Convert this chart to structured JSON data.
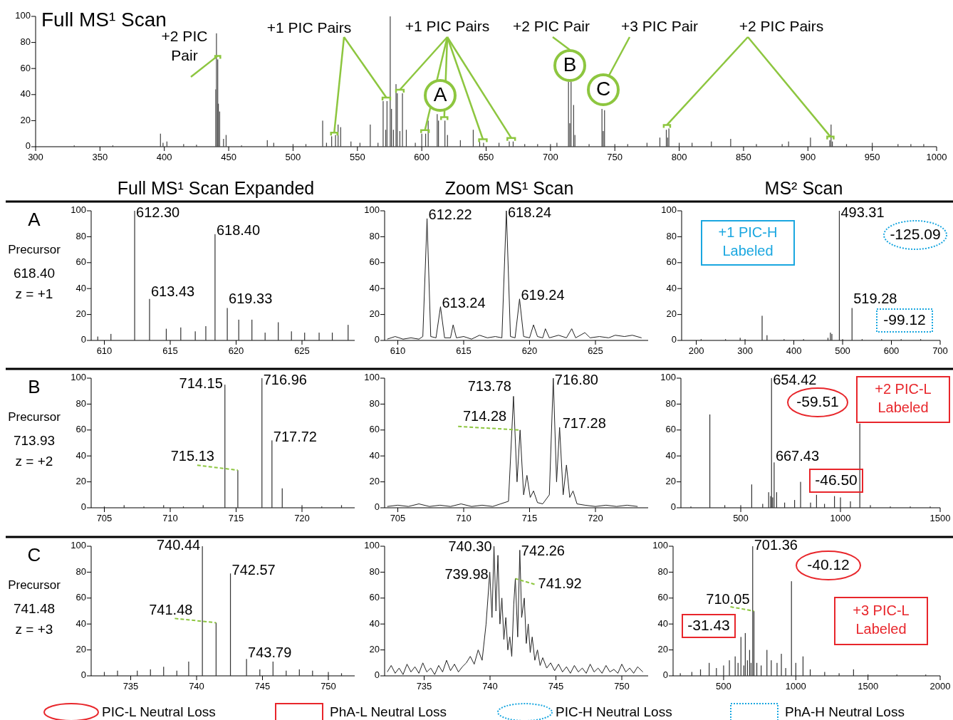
{
  "chart_data": [
    {
      "type": "bar",
      "title": "Full MS¹ Scan",
      "color": "#444444",
      "xlim": [
        300,
        1000
      ],
      "xticks": [
        300,
        350,
        400,
        450,
        500,
        550,
        600,
        650,
        700,
        750,
        800,
        850,
        900,
        950,
        1000
      ],
      "ylim": [
        0,
        100
      ],
      "yticks": [
        0,
        20,
        40,
        60,
        80,
        100
      ],
      "x": [
        330,
        360,
        397,
        399,
        402,
        415,
        425,
        440,
        440.5,
        441.5,
        442,
        443,
        446,
        448,
        460,
        480,
        485,
        500,
        510,
        523,
        526,
        530,
        533,
        535,
        537,
        545,
        552,
        560,
        566,
        570,
        572,
        573,
        575.5,
        576.5,
        578,
        580,
        581,
        583,
        585,
        588,
        595,
        600,
        603,
        605,
        612,
        613,
        618,
        620,
        630,
        640,
        645,
        648,
        660,
        668,
        671,
        680,
        690,
        700,
        705,
        714,
        715,
        716,
        718,
        719,
        730,
        740,
        741,
        742,
        750,
        760,
        775,
        785,
        790,
        791,
        792,
        800,
        810,
        825,
        840,
        860,
        880,
        885,
        902,
        917,
        918,
        919,
        930,
        950,
        970,
        980,
        990
      ],
      "values": [
        1,
        1,
        10,
        3,
        4,
        2,
        1.5,
        44,
        87,
        67,
        33,
        27,
        6,
        9,
        1,
        5,
        3,
        2,
        2,
        20,
        3,
        8,
        9,
        17,
        15,
        4,
        3,
        17,
        3,
        35,
        13,
        35,
        100,
        29,
        13,
        48,
        41,
        12,
        41,
        13,
        3,
        10,
        10,
        20,
        25,
        20,
        20,
        9,
        5,
        13,
        4,
        3,
        3,
        4,
        4,
        2,
        2,
        2,
        3,
        50,
        18,
        50,
        32,
        9,
        2,
        29,
        12,
        28,
        2,
        2,
        3,
        7,
        13,
        7,
        14,
        3,
        3,
        4,
        6,
        2,
        2,
        4,
        7,
        5,
        17,
        4,
        2,
        3,
        2,
        2,
        2
      ],
      "annotations": [
        {
          "text": "+2 PIC\nPair",
          "x": 441.5,
          "y": 67
        },
        {
          "text": "+1 PIC Pairs",
          "x": 532,
          "y": 8
        },
        {
          "text": "+1 PIC Pairs",
          "x": 583,
          "y": 41
        },
        "+2 PIC Pair",
        "+3 PIC Pair",
        {
          "text": "+2 PIC Pairs",
          "x": 790.5,
          "y": 14
        },
        "A",
        "B",
        "C"
      ]
    },
    {
      "type": "bar",
      "title": "Full MS¹ Scan Expanded",
      "color": "#333333",
      "xlim": [
        609,
        629
      ],
      "xticks": [
        610,
        615,
        620,
        625
      ],
      "ylim": [
        0,
        100
      ],
      "yticks": [
        0,
        20,
        40,
        60,
        80,
        100
      ],
      "x": [
        609.5,
        610.5,
        612.3,
        613.43,
        614.7,
        615.8,
        616.9,
        617.7,
        618.4,
        619.33,
        620.2,
        621.2,
        622.2,
        623.2,
        624.2,
        625.2,
        626.3,
        627.3,
        628.5
      ],
      "values": [
        3,
        5,
        100,
        32,
        9,
        10,
        7,
        11,
        82,
        25,
        16,
        16,
        6,
        14,
        7,
        6,
        6,
        6,
        12
      ],
      "annotations": [
        "A",
        "Precursor",
        "618.40",
        "z = +1",
        {
          "text": "612.30",
          "x": 612.3,
          "y": 100
        },
        {
          "text": "618.40",
          "x": 618.4,
          "y": 82
        },
        {
          "text": "613.43",
          "x": 613.43,
          "y": 32
        },
        {
          "text": "619.33",
          "x": 619.33,
          "y": 25
        }
      ]
    },
    {
      "type": "line",
      "title": "Zoom MS¹ Scan",
      "color": "#222222",
      "xlim": [
        609,
        629
      ],
      "xticks": [
        610,
        615,
        620,
        625
      ],
      "ylim": [
        0,
        100
      ],
      "yticks": [
        0,
        20,
        40,
        60,
        80,
        100
      ],
      "x": [
        609.2,
        609.8,
        610.4,
        611,
        611.6,
        611.9,
        612.22,
        612.5,
        612.9,
        613.24,
        613.55,
        614,
        614.2,
        614.45,
        615,
        615.6,
        616.2,
        616.8,
        617.4,
        617.9,
        618.24,
        618.55,
        618.9,
        619.24,
        619.55,
        620,
        620.3,
        620.6,
        621,
        621.2,
        621.5,
        622.2,
        622.8,
        623.2,
        623.5,
        624.2,
        624.6,
        625.3,
        626,
        626.5,
        627.2,
        627.8,
        628.5
      ],
      "values": [
        1,
        3,
        1,
        2,
        1,
        3,
        94,
        3,
        2,
        26,
        2,
        2,
        12,
        2,
        3,
        1,
        4,
        2,
        3,
        2,
        100,
        3,
        2,
        32,
        3,
        2,
        12,
        3,
        2,
        9,
        2,
        4,
        2,
        9,
        2,
        6,
        2,
        3,
        2,
        4,
        3,
        4,
        2
      ],
      "annotations": [
        {
          "text": "612.22",
          "x": 612.22,
          "y": 94
        },
        {
          "text": "618.24",
          "x": 618.24,
          "y": 100
        },
        {
          "text": "613.24",
          "x": 613.24,
          "y": 26
        },
        {
          "text": "619.24",
          "x": 619.24,
          "y": 32
        }
      ]
    },
    {
      "type": "bar",
      "title": "MS² Scan",
      "color": "#333333",
      "xlim": [
        170,
        700
      ],
      "xticks": [
        200,
        300,
        400,
        500,
        600,
        700
      ],
      "ylim": [
        0,
        100
      ],
      "yticks": [
        0,
        20,
        40,
        60,
        80,
        100
      ],
      "x": [
        210,
        260,
        290,
        300,
        335,
        345,
        380,
        420,
        470,
        475,
        478,
        493.31,
        500,
        519.28,
        540,
        580,
        620,
        660
      ],
      "values": [
        1,
        1,
        2,
        1,
        19,
        4,
        1,
        1,
        2,
        6,
        5,
        100,
        1,
        25,
        1,
        1,
        1,
        1
      ],
      "annotations": [
        {
          "text": "493.31",
          "x": 493.31,
          "y": 100
        },
        {
          "text": "519.28",
          "x": 519.28,
          "y": 25
        },
        "-125.09",
        "-99.12",
        "+1 PIC-H\nLabeled"
      ]
    },
    {
      "type": "bar",
      "color": "#333333",
      "xlim": [
        704,
        724
      ],
      "xticks": [
        705,
        710,
        715,
        720
      ],
      "ylim": [
        0,
        100
      ],
      "yticks": [
        0,
        20,
        40,
        60,
        80,
        100
      ],
      "x": [
        705,
        706.5,
        708,
        709.5,
        711,
        712.5,
        714.15,
        715.13,
        716.96,
        717.72,
        718.5,
        720,
        721.5,
        723
      ],
      "values": [
        1,
        2,
        1,
        2,
        1,
        2,
        95,
        29,
        100,
        52,
        15,
        2,
        1,
        2
      ],
      "annotations": [
        "B",
        "Precursor",
        "713.93",
        "z = +2",
        {
          "text": "714.15",
          "x": 714.15,
          "y": 95
        },
        {
          "text": "716.96",
          "x": 716.96,
          "y": 100
        },
        {
          "text": "717.72",
          "x": 717.72,
          "y": 52
        },
        {
          "text": "715.13",
          "x": 715.13,
          "y": 29
        }
      ]
    },
    {
      "type": "line",
      "color": "#222222",
      "xlim": [
        704,
        724
      ],
      "xticks": [
        705,
        710,
        715,
        720
      ],
      "ylim": [
        0,
        100
      ],
      "yticks": [
        0,
        20,
        40,
        60,
        80,
        100
      ],
      "x": [
        704.2,
        705,
        705.8,
        706.6,
        707.4,
        708.2,
        709,
        709.8,
        710.6,
        711.4,
        712.2,
        712.8,
        713.4,
        713.78,
        714.05,
        714.28,
        714.55,
        714.8,
        715.05,
        715.3,
        715.6,
        716,
        716.5,
        716.8,
        717.05,
        717.28,
        717.55,
        717.8,
        718.05,
        718.3,
        718.6,
        719.2,
        720,
        720.8,
        721.6,
        722.4,
        723.2
      ],
      "values": [
        1,
        2,
        1,
        3,
        1,
        2,
        1,
        3,
        1,
        2,
        1,
        3,
        5,
        86,
        20,
        60,
        10,
        25,
        8,
        13,
        4,
        3,
        10,
        100,
        20,
        62,
        10,
        33,
        8,
        13,
        3,
        2,
        1,
        2,
        1,
        2,
        1
      ],
      "annotations": [
        {
          "text": "713.78",
          "x": 713.78,
          "y": 86
        },
        {
          "text": "716.80",
          "x": 716.8,
          "y": 100
        },
        {
          "text": "717.28",
          "x": 717.28,
          "y": 62
        },
        {
          "text": "714.28",
          "x": 714.28,
          "y": 60
        }
      ]
    },
    {
      "type": "bar",
      "color": "#333333",
      "xlim": [
        200,
        1500
      ],
      "xticks": [
        500,
        1000,
        1500
      ],
      "ylim": [
        0,
        100
      ],
      "yticks": [
        0,
        20,
        40,
        60,
        80,
        100
      ],
      "x": [
        250,
        345,
        420,
        500,
        555,
        610,
        640,
        650,
        654.42,
        660,
        667.43,
        680,
        720,
        770,
        800,
        850,
        880,
        920,
        970,
        1000,
        1050,
        1097,
        1150,
        1250,
        1350,
        1450
      ],
      "values": [
        1,
        72,
        2,
        2,
        18,
        3,
        12,
        9,
        100,
        8,
        35,
        12,
        4,
        6,
        20,
        4,
        10,
        3,
        9,
        8,
        5,
        65,
        2,
        1,
        1,
        1
      ],
      "annotations": [
        {
          "text": "654.42",
          "x": 654.42,
          "y": 100
        },
        {
          "text": "667.43",
          "x": 667.43,
          "y": 35
        },
        "-59.51",
        "-46.50",
        "+2 PIC-L\nLabeled"
      ]
    },
    {
      "type": "bar",
      "color": "#333333",
      "xlim": [
        732,
        752
      ],
      "xticks": [
        735,
        740,
        745,
        750
      ],
      "ylim": [
        0,
        100
      ],
      "yticks": [
        0,
        20,
        40,
        60,
        80,
        100
      ],
      "x": [
        733,
        734,
        735.5,
        736.5,
        737.5,
        738.5,
        739.4,
        740.44,
        741.48,
        742.57,
        743.79,
        744.8,
        745.8,
        746.8,
        747.8,
        748.8,
        750,
        751
      ],
      "values": [
        3,
        4,
        4,
        5,
        7,
        4,
        11,
        100,
        41,
        79,
        13,
        5,
        11,
        4,
        5,
        4,
        3,
        2
      ],
      "annotations": [
        "C",
        "Precursor",
        "741.48",
        "z = +3",
        {
          "text": "740.44",
          "x": 740.44,
          "y": 100
        },
        {
          "text": "742.57",
          "x": 742.57,
          "y": 79
        },
        {
          "text": "743.79",
          "x": 743.79,
          "y": 13
        },
        {
          "text": "741.48",
          "x": 741.48,
          "y": 41
        }
      ]
    },
    {
      "type": "line",
      "color": "#222222",
      "xlim": [
        732,
        752
      ],
      "xticks": [
        735,
        740,
        745,
        750
      ],
      "ylim": [
        0,
        100
      ],
      "yticks": [
        0,
        20,
        40,
        60,
        80,
        100
      ],
      "x": [
        732.2,
        732.5,
        732.8,
        733.1,
        733.4,
        733.7,
        734,
        734.3,
        734.6,
        734.9,
        735.2,
        735.5,
        735.8,
        736.1,
        736.4,
        736.7,
        737,
        737.3,
        737.6,
        737.9,
        738.2,
        738.5,
        738.8,
        739.1,
        739.4,
        739.7,
        739.98,
        740.15,
        740.3,
        740.45,
        740.6,
        740.75,
        740.9,
        741.05,
        741.2,
        741.35,
        741.5,
        741.65,
        741.8,
        741.92,
        742.1,
        742.26,
        742.4,
        742.6,
        742.75,
        742.9,
        743.05,
        743.2,
        743.4,
        743.6,
        743.8,
        744,
        744.3,
        744.6,
        744.9,
        745.2,
        745.5,
        745.8,
        746.1,
        746.4,
        746.7,
        747,
        747.3,
        747.6,
        747.9,
        748.2,
        748.5,
        748.8,
        749.1,
        749.4,
        749.7,
        750,
        750.3,
        750.6,
        750.9,
        751.2,
        751.6
      ],
      "values": [
        3,
        8,
        2,
        6,
        1,
        9,
        3,
        7,
        2,
        10,
        3,
        6,
        1,
        8,
        3,
        12,
        4,
        9,
        3,
        7,
        10,
        15,
        9,
        20,
        12,
        40,
        80,
        45,
        100,
        50,
        93,
        40,
        60,
        28,
        45,
        20,
        30,
        15,
        55,
        75,
        30,
        97,
        45,
        60,
        25,
        40,
        18,
        30,
        12,
        20,
        8,
        14,
        6,
        10,
        4,
        9,
        3,
        7,
        2,
        8,
        3,
        6,
        2,
        9,
        3,
        6,
        2,
        8,
        3,
        5,
        2,
        9,
        3,
        6,
        2,
        7,
        3
      ],
      "annotations": [
        {
          "text": "740.30",
          "x": 740.3,
          "y": 100
        },
        {
          "text": "742.26",
          "x": 742.26,
          "y": 97
        },
        {
          "text": "739.98",
          "x": 739.98,
          "y": 80
        },
        {
          "text": "741.92",
          "x": 741.92,
          "y": 75
        }
      ]
    },
    {
      "type": "bar",
      "color": "#333333",
      "xlim": [
        150,
        2000
      ],
      "xticks": [
        500,
        1000,
        1500,
        2000
      ],
      "ylim": [
        0,
        100
      ],
      "yticks": [
        0,
        20,
        40,
        60,
        80,
        100
      ],
      "x": [
        200,
        280,
        340,
        400,
        450,
        500,
        540,
        580,
        600,
        620,
        640,
        650,
        665,
        680,
        690,
        701.36,
        710.05,
        730,
        760,
        800,
        830,
        870,
        900,
        930,
        970,
        1000,
        1050,
        1100,
        1200,
        1300,
        1400,
        1500,
        1700,
        1900
      ],
      "values": [
        2,
        3,
        5,
        10,
        6,
        8,
        12,
        15,
        10,
        30,
        8,
        33,
        12,
        20,
        10,
        100,
        50,
        10,
        8,
        20,
        12,
        10,
        17,
        6,
        73,
        10,
        15,
        5,
        3,
        2,
        5,
        1,
        1,
        1
      ],
      "annotations": [
        {
          "text": "701.36",
          "x": 701.36,
          "y": 100
        },
        {
          "text": "710.05",
          "x": 710.05,
          "y": 50
        },
        "-40.12",
        "-31.43",
        "+3 PIC-L\nLabeled"
      ]
    },
    {
      "type": "other",
      "annotations": [
        "PIC-L Neutral Loss",
        "PhA-L Neutral Loss",
        "PIC-H Neutral Loss",
        "PhA-H Neutral Loss"
      ]
    }
  ]
}
